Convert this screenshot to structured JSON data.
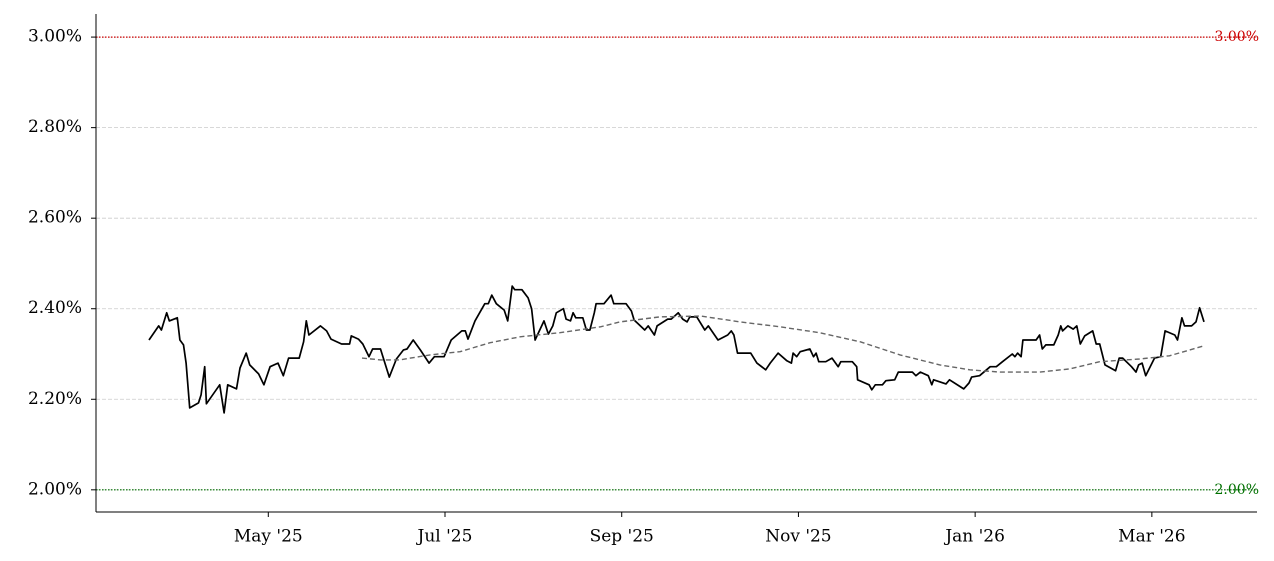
{
  "chart_data": {
    "type": "line",
    "series": [
      {
        "color": "#000000",
        "style": "solid",
        "x": [
          -0.35,
          -0.24,
          -0.21,
          -0.15,
          -0.12,
          -0.03,
          0.0,
          0.04,
          0.07,
          0.11,
          0.21,
          0.24,
          0.28,
          0.3,
          0.45,
          0.5,
          0.54,
          0.64,
          0.68,
          0.75,
          0.79,
          0.89,
          0.95,
          1.02,
          1.11,
          1.17,
          1.23,
          1.35,
          1.4,
          1.43,
          1.46,
          1.59,
          1.66,
          1.71,
          1.83,
          1.92,
          1.94,
          2.02,
          2.07,
          2.14,
          2.18,
          2.27,
          2.37,
          2.45,
          2.53,
          2.57,
          2.64,
          2.72,
          2.82,
          2.88,
          2.99,
          3.07,
          3.19,
          3.23,
          3.26,
          3.34,
          3.45,
          3.49,
          3.53,
          3.58,
          3.67,
          3.71,
          3.76,
          3.79,
          3.87,
          3.94,
          3.98,
          4.02,
          4.12,
          4.17,
          4.22,
          4.26,
          4.34,
          4.37,
          4.42,
          4.45,
          4.48,
          4.56,
          4.6,
          4.64,
          4.69,
          4.71,
          4.8,
          4.88,
          4.91,
          5.05,
          5.11,
          5.14,
          5.26,
          5.3,
          5.37,
          5.4,
          5.52,
          5.56,
          5.64,
          5.69,
          5.74,
          5.77,
          5.85,
          5.94,
          5.98,
          6.09,
          6.2,
          6.24,
          6.27,
          6.31,
          6.46,
          6.53,
          6.63,
          6.68,
          6.77,
          6.87,
          6.92,
          6.94,
          6.98,
          7.02,
          7.13,
          7.17,
          7.2,
          7.23,
          7.31,
          7.38,
          7.45,
          7.48,
          7.61,
          7.66,
          7.67,
          7.8,
          7.83,
          7.87,
          7.95,
          7.99,
          8.09,
          8.13,
          8.29,
          8.33,
          8.38,
          8.47,
          8.51,
          8.53,
          8.67,
          8.71,
          8.87,
          8.93,
          8.96,
          9.05,
          9.17,
          9.24,
          9.31,
          9.42,
          9.45,
          9.48,
          9.52,
          9.54,
          9.69,
          9.73,
          9.76,
          9.8,
          9.89,
          9.94,
          9.97,
          9.99,
          10.05,
          10.11,
          10.15,
          10.19,
          10.24,
          10.33,
          10.37,
          10.41,
          10.47,
          10.59,
          10.63,
          10.67,
          10.77,
          10.82,
          10.85,
          10.89,
          10.93,
          11.03,
          11.1,
          11.15,
          11.26,
          11.29,
          11.34,
          11.37,
          11.45,
          11.5,
          11.54,
          11.59
        ],
        "values": [
          2.331,
          2.362,
          2.353,
          2.391,
          2.373,
          2.38,
          2.331,
          2.32,
          2.28,
          2.181,
          2.192,
          2.21,
          2.272,
          2.19,
          2.232,
          2.17,
          2.232,
          2.223,
          2.269,
          2.302,
          2.276,
          2.256,
          2.232,
          2.272,
          2.28,
          2.252,
          2.291,
          2.291,
          2.327,
          2.373,
          2.342,
          2.362,
          2.351,
          2.333,
          2.322,
          2.322,
          2.34,
          2.333,
          2.322,
          2.294,
          2.311,
          2.311,
          2.249,
          2.289,
          2.309,
          2.311,
          2.331,
          2.309,
          2.28,
          2.294,
          2.294,
          2.331,
          2.351,
          2.351,
          2.333,
          2.373,
          2.411,
          2.411,
          2.43,
          2.411,
          2.397,
          2.373,
          2.45,
          2.442,
          2.442,
          2.424,
          2.4,
          2.331,
          2.373,
          2.344,
          2.362,
          2.391,
          2.4,
          2.377,
          2.373,
          2.391,
          2.38,
          2.38,
          2.353,
          2.353,
          2.391,
          2.411,
          2.411,
          2.43,
          2.411,
          2.411,
          2.395,
          2.375,
          2.353,
          2.362,
          2.342,
          2.362,
          2.377,
          2.377,
          2.391,
          2.377,
          2.371,
          2.382,
          2.382,
          2.353,
          2.362,
          2.331,
          2.342,
          2.351,
          2.342,
          2.302,
          2.302,
          2.28,
          2.265,
          2.28,
          2.302,
          2.285,
          2.28,
          2.302,
          2.294,
          2.305,
          2.311,
          2.294,
          2.302,
          2.283,
          2.283,
          2.291,
          2.272,
          2.283,
          2.283,
          2.272,
          2.243,
          2.232,
          2.221,
          2.232,
          2.232,
          2.241,
          2.243,
          2.26,
          2.26,
          2.252,
          2.26,
          2.252,
          2.232,
          2.243,
          2.234,
          2.243,
          2.223,
          2.236,
          2.249,
          2.252,
          2.272,
          2.272,
          2.283,
          2.3,
          2.294,
          2.302,
          2.294,
          2.331,
          2.331,
          2.342,
          2.311,
          2.32,
          2.32,
          2.342,
          2.362,
          2.351,
          2.362,
          2.355,
          2.362,
          2.322,
          2.34,
          2.351,
          2.322,
          2.322,
          2.276,
          2.263,
          2.291,
          2.291,
          2.272,
          2.26,
          2.276,
          2.28,
          2.252,
          2.291,
          2.294,
          2.351,
          2.342,
          2.331,
          2.38,
          2.362,
          2.362,
          2.371,
          2.402,
          2.371
        ]
      },
      {
        "color": "#666666",
        "style": "dashed",
        "x": [
          2.06,
          2.27,
          2.49,
          2.61,
          2.83,
          3.17,
          3.51,
          3.85,
          4.3,
          4.76,
          4.98,
          5.43,
          5.89,
          6.34,
          6.79,
          7.24,
          7.7,
          8.15,
          8.6,
          8.94,
          9.28,
          9.73,
          10.07,
          10.41,
          10.86,
          11.2,
          11.59
        ],
        "values": [
          2.291,
          2.287,
          2.287,
          2.291,
          2.298,
          2.305,
          2.325,
          2.338,
          2.347,
          2.36,
          2.371,
          2.382,
          2.384,
          2.371,
          2.36,
          2.347,
          2.327,
          2.298,
          2.276,
          2.265,
          2.26,
          2.26,
          2.267,
          2.283,
          2.289,
          2.296,
          2.318
        ]
      }
    ],
    "xlim": [
      -0.95,
      12.19
    ],
    "xticks": [
      {
        "value": 1,
        "label": "May '25"
      },
      {
        "value": 3,
        "label": "Jul '25"
      },
      {
        "value": 5,
        "label": "Sep '25"
      },
      {
        "value": 7,
        "label": "Nov '25"
      },
      {
        "value": 9,
        "label": "Jan '26"
      },
      {
        "value": 11,
        "label": "Mar '26"
      }
    ],
    "ylim": [
      1.951,
      3.051
    ],
    "yticks": [
      {
        "value": 2.0,
        "label": "2.00%"
      },
      {
        "value": 2.2,
        "label": "2.20%"
      },
      {
        "value": 2.4,
        "label": "2.40%"
      },
      {
        "value": 2.6,
        "label": "2.60%"
      },
      {
        "value": 2.8,
        "label": "2.80%"
      },
      {
        "value": 3.0,
        "label": "3.00%"
      }
    ],
    "grid": true,
    "reference_lines": [
      {
        "value": 3.0,
        "label": "3.00%",
        "color": "#cc0000"
      },
      {
        "value": 2.0,
        "label": "2.00%",
        "color": "#007000"
      }
    ]
  }
}
